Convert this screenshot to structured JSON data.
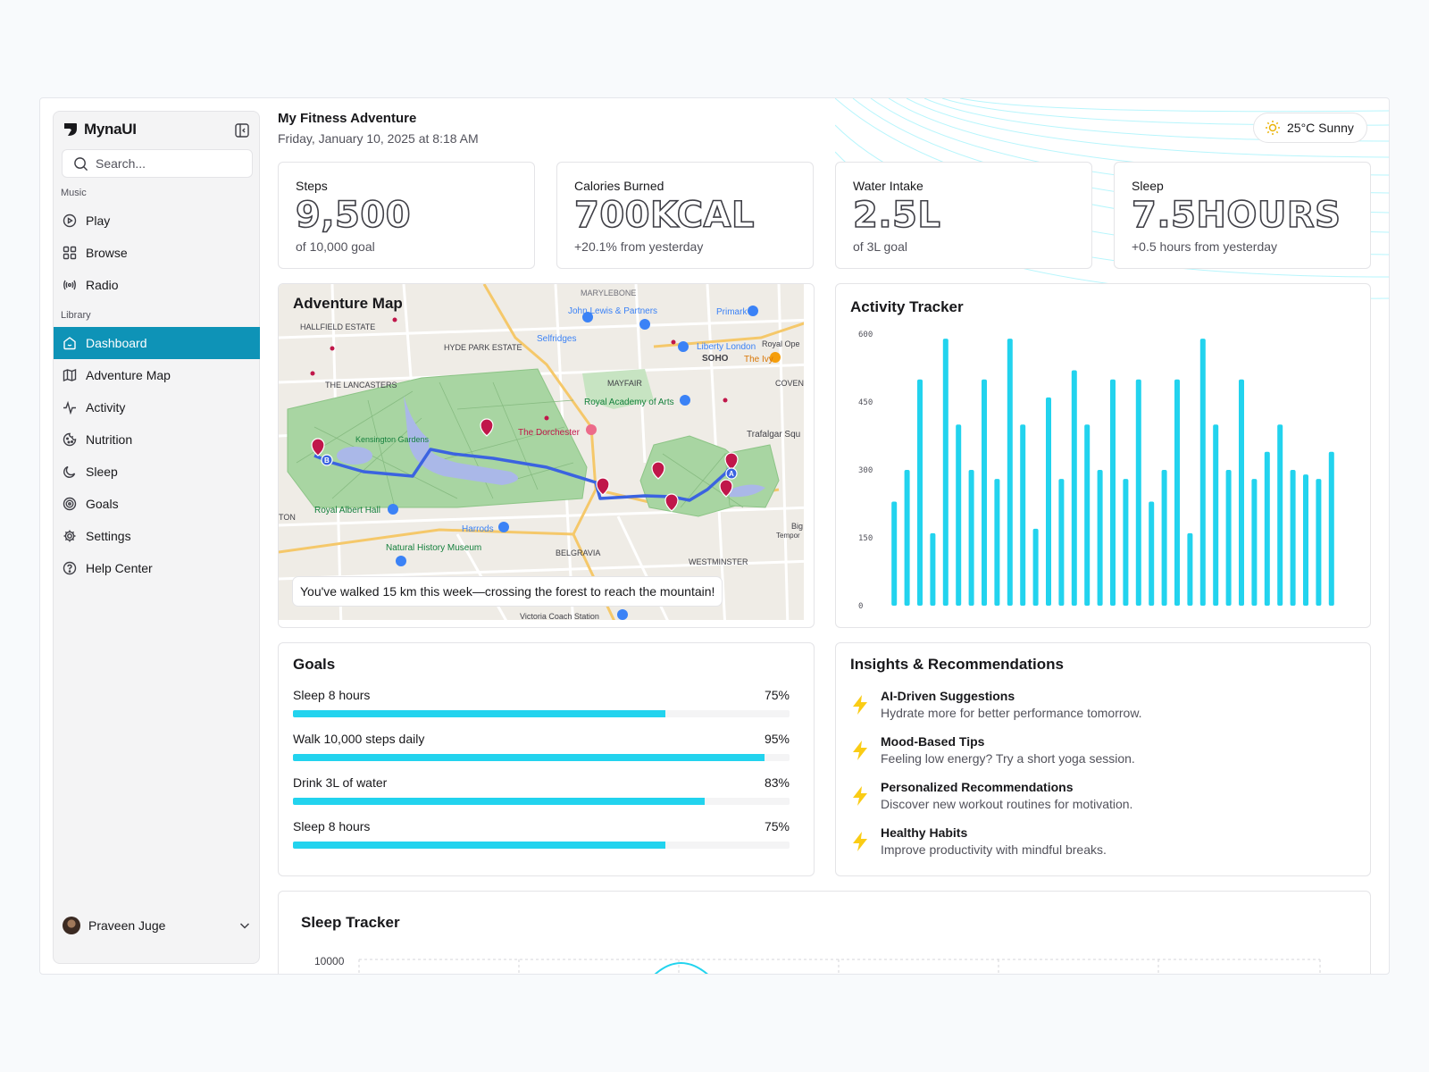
{
  "sidebar": {
    "brand": "MynaUI",
    "search_placeholder": "Search...",
    "music_label": "Music",
    "music_items": [
      {
        "label": "Play",
        "icon": "play-icon"
      },
      {
        "label": "Browse",
        "icon": "grid-icon"
      },
      {
        "label": "Radio",
        "icon": "radio-icon"
      }
    ],
    "library_label": "Library",
    "library_items": [
      {
        "label": "Dashboard",
        "icon": "home-icon",
        "active": true
      },
      {
        "label": "Adventure Map",
        "icon": "map-icon"
      },
      {
        "label": "Activity",
        "icon": "activity-icon"
      },
      {
        "label": "Nutrition",
        "icon": "cookie-icon"
      },
      {
        "label": "Sleep",
        "icon": "moon-icon"
      },
      {
        "label": "Goals",
        "icon": "target-icon"
      },
      {
        "label": "Settings",
        "icon": "gear-icon"
      },
      {
        "label": "Help Center",
        "icon": "help-icon"
      }
    ],
    "user_name": "Praveen Juge"
  },
  "header": {
    "title": "My Fitness Adventure",
    "date": "Friday, January 10, 2025 at 8:18 AM",
    "weather": "25°C Sunny"
  },
  "stats": [
    {
      "label": "Steps",
      "value": "9,500",
      "sub": "of 10,000 goal"
    },
    {
      "label": "Calories Burned",
      "value": "700KCAL",
      "sub": "+20.1% from yesterday"
    },
    {
      "label": "Water Intake",
      "value": "2.5L",
      "sub": "of 3L goal"
    },
    {
      "label": "Sleep",
      "value": "7.5HOURS",
      "sub": "+0.5 hours from yesterday"
    }
  ],
  "map": {
    "title": "Adventure Map",
    "caption": "You've walked 15 km this week—crossing the forest to reach the mountain!",
    "place_labels": [
      "MARYLEBONE",
      "HALLFIELD ESTATE",
      "John Lewis & Partners",
      "Primark",
      "HYDE PARK ESTATE",
      "Selfridges",
      "Liberty London",
      "SOHO",
      "The Ivy",
      "THE LANCASTERS",
      "MAYFAIR",
      "Royal Academy of Arts",
      "The Dorchester",
      "Kensington Gardens",
      "Trafalgar Squ",
      "Royal Albert Hall",
      "Harrods",
      "Natural History Museum",
      "BELGRAVIA",
      "WESTMINSTER",
      "Victoria Coach Station",
      "COVEN",
      "Royal Ope",
      "TON",
      "Big",
      "Tempor"
    ],
    "route_labels": [
      "A",
      "B"
    ]
  },
  "activity": {
    "title": "Activity Tracker"
  },
  "chart_data": {
    "type": "bar",
    "title": "Activity Tracker",
    "xlabel": "",
    "ylabel": "",
    "yticks": [
      "600",
      "450",
      "300",
      "150",
      "0"
    ],
    "ylim": [
      0,
      600
    ],
    "grid": false,
    "values": [
      230,
      300,
      500,
      160,
      590,
      400,
      300,
      500,
      280,
      590,
      400,
      170,
      460,
      280,
      520,
      400,
      300,
      500,
      280,
      500,
      230,
      300,
      500,
      160,
      590,
      400,
      300,
      500,
      280,
      340,
      400,
      300,
      290,
      280,
      340
    ],
    "color": "#22d3ee"
  },
  "goals": {
    "title": "Goals",
    "items": [
      {
        "label": "Sleep 8 hours",
        "percent_label": "75%",
        "percent": 75
      },
      {
        "label": "Walk 10,000 steps daily",
        "percent_label": "95%",
        "percent": 95
      },
      {
        "label": "Drink 3L of water",
        "percent_label": "83%",
        "percent": 83
      },
      {
        "label": "Sleep 8 hours",
        "percent_label": "75%",
        "percent": 75
      }
    ]
  },
  "insights": {
    "title": "Insights & Recommendations",
    "items": [
      {
        "title": "AI-Driven Suggestions",
        "desc": "Hydrate more for better performance tomorrow."
      },
      {
        "title": "Mood-Based Tips",
        "desc": "Feeling low energy? Try a short yoga session."
      },
      {
        "title": "Personalized Recommendations",
        "desc": "Discover new workout routines for motivation."
      },
      {
        "title": "Healthy Habits",
        "desc": "Improve productivity with mindful breaks."
      }
    ]
  },
  "sleep_tracker": {
    "title": "Sleep Tracker",
    "y_tick": "10000"
  },
  "colors": {
    "accent": "#0e93b7",
    "bar": "#22d3ee",
    "bolt": "#facc15",
    "route": "#3b63e0",
    "park": "#a8d5a2",
    "water": "#aab8e8"
  }
}
